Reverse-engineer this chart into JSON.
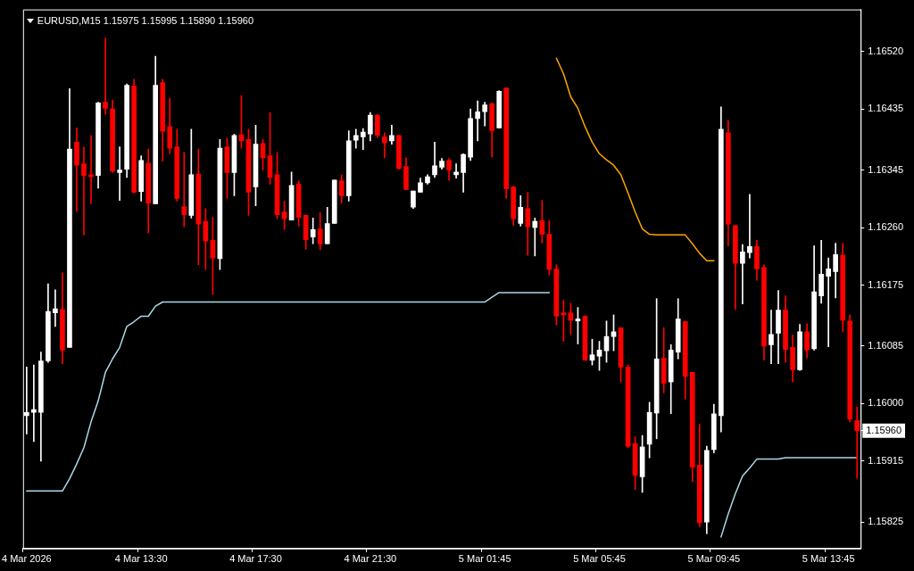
{
  "chart_data": {
    "type": "candlestick",
    "title": "EURUSD,M15 1.15975 1.15995 1.15890 1.15960",
    "categories": [
      "4 Mar 2026",
      null,
      null,
      null,
      null,
      null,
      null,
      null,
      null,
      null,
      null,
      null,
      null,
      null,
      null,
      null,
      "4 Mar 13:30",
      null,
      null,
      null,
      null,
      null,
      null,
      null,
      null,
      null,
      null,
      null,
      null,
      null,
      null,
      null,
      "4 Mar 17:30",
      null,
      null,
      null,
      null,
      null,
      null,
      null,
      null,
      null,
      null,
      null,
      null,
      null,
      null,
      null,
      "4 Mar 21:30",
      null,
      null,
      null,
      null,
      null,
      null,
      null,
      null,
      null,
      null,
      null,
      null,
      null,
      null,
      null,
      "5 Mar 01:45",
      null,
      null,
      null,
      null,
      null,
      null,
      null,
      null,
      null,
      null,
      null,
      null,
      null,
      null,
      null,
      "5 Mar 05:45",
      null,
      null,
      null,
      null,
      null,
      null,
      null,
      null,
      null,
      null,
      null,
      null,
      null,
      null,
      null,
      "5 Mar 09:45",
      null,
      null,
      null,
      null,
      null,
      null,
      null,
      null,
      null,
      null,
      null,
      null,
      null,
      null,
      null,
      "5 Mar 13:45",
      null,
      null,
      null,
      null
    ],
    "ohlc": [
      [
        1.15982,
        1.16054,
        1.15955,
        1.15987
      ],
      [
        1.15987,
        1.16057,
        1.15944,
        1.15991
      ],
      [
        1.15987,
        1.16076,
        1.15915,
        1.16063
      ],
      [
        1.16063,
        1.16177,
        1.16061,
        1.16136
      ],
      [
        1.16134,
        1.16168,
        1.16114,
        1.1614
      ],
      [
        1.16139,
        1.16193,
        1.16059,
        1.16079
      ],
      [
        1.16083,
        1.16465,
        1.16083,
        1.16376
      ],
      [
        1.16386,
        1.16407,
        1.16284,
        1.16352
      ],
      [
        1.16354,
        1.16379,
        1.16249,
        1.16337
      ],
      [
        1.16338,
        1.16396,
        1.16295,
        1.16335
      ],
      [
        1.16337,
        1.16445,
        1.16318,
        1.16444
      ],
      [
        1.16445,
        1.1654,
        1.16427,
        1.16436
      ],
      [
        1.16435,
        1.16448,
        1.16341,
        1.16343
      ],
      [
        1.16341,
        1.16379,
        1.163,
        1.16345
      ],
      [
        1.16346,
        1.16472,
        1.16334,
        1.1647
      ],
      [
        1.16469,
        1.16479,
        1.16311,
        1.16312
      ],
      [
        1.16313,
        1.16366,
        1.16299,
        1.16359
      ],
      [
        1.16355,
        1.16376,
        1.16252,
        1.16296
      ],
      [
        1.16295,
        1.16513,
        1.16295,
        1.1647
      ],
      [
        1.16474,
        1.16479,
        1.16358,
        1.16402
      ],
      [
        1.16409,
        1.16451,
        1.16369,
        1.16377
      ],
      [
        1.16379,
        1.16405,
        1.16299,
        1.16303
      ],
      [
        1.16291,
        1.16371,
        1.16261,
        1.16279
      ],
      [
        1.16278,
        1.16405,
        1.16274,
        1.16338
      ],
      [
        1.16339,
        1.16376,
        1.16205,
        1.16265
      ],
      [
        1.16269,
        1.16288,
        1.16198,
        1.1624
      ],
      [
        1.16241,
        1.16275,
        1.16161,
        1.16215
      ],
      [
        1.16214,
        1.1639,
        1.16198,
        1.16377
      ],
      [
        1.16379,
        1.16392,
        1.16303,
        1.16341
      ],
      [
        1.16341,
        1.16398,
        1.16307,
        1.16396
      ],
      [
        1.16397,
        1.16455,
        1.16377,
        1.16388
      ],
      [
        1.1639,
        1.16405,
        1.16278,
        1.16312
      ],
      [
        1.1632,
        1.16411,
        1.16292,
        1.16383
      ],
      [
        1.16384,
        1.1639,
        1.16345,
        1.16363
      ],
      [
        1.16366,
        1.1643,
        1.16324,
        1.16334
      ],
      [
        1.16338,
        1.16371,
        1.16273,
        1.16279
      ],
      [
        1.16283,
        1.16299,
        1.16257,
        1.16273
      ],
      [
        1.16271,
        1.16342,
        1.16271,
        1.16322
      ],
      [
        1.16324,
        1.16329,
        1.16262,
        1.16275
      ],
      [
        1.16278,
        1.16278,
        1.16228,
        1.16242
      ],
      [
        1.16246,
        1.16274,
        1.16236,
        1.16257
      ],
      [
        1.16258,
        1.16282,
        1.16227,
        1.16236
      ],
      [
        1.16236,
        1.1629,
        1.16236,
        1.16266
      ],
      [
        1.16266,
        1.1633,
        1.16266,
        1.1633
      ],
      [
        1.16329,
        1.16338,
        1.16296,
        1.16307
      ],
      [
        1.16307,
        1.16403,
        1.16299,
        1.16388
      ],
      [
        1.16389,
        1.16405,
        1.16377,
        1.16396
      ],
      [
        1.16394,
        1.16406,
        1.16375,
        1.16401
      ],
      [
        1.16398,
        1.1643,
        1.16388,
        1.16426
      ],
      [
        1.16426,
        1.16427,
        1.16393,
        1.16396
      ],
      [
        1.16394,
        1.164,
        1.16363,
        1.16385
      ],
      [
        1.16388,
        1.16411,
        1.16383,
        1.16396
      ],
      [
        1.16396,
        1.16396,
        1.16346,
        1.16347
      ],
      [
        1.1635,
        1.16363,
        1.16316,
        1.16316
      ],
      [
        1.1629,
        1.16314,
        1.16288,
        1.16314
      ],
      [
        1.16312,
        1.16333,
        1.16312,
        1.16326
      ],
      [
        1.16326,
        1.16338,
        1.16324,
        1.16335
      ],
      [
        1.16338,
        1.16386,
        1.16334,
        1.16351
      ],
      [
        1.16349,
        1.16362,
        1.16346,
        1.16358
      ],
      [
        1.16359,
        1.16362,
        1.1633,
        1.16345
      ],
      [
        1.16338,
        1.16354,
        1.16333,
        1.16342
      ],
      [
        1.16341,
        1.16369,
        1.16312,
        1.16368
      ],
      [
        1.16364,
        1.16435,
        1.16359,
        1.16421
      ],
      [
        1.16421,
        1.16447,
        1.16388,
        1.16431
      ],
      [
        1.16431,
        1.16445,
        1.1641,
        1.16441
      ],
      [
        1.16443,
        1.16444,
        1.16364,
        1.16403
      ],
      [
        1.16407,
        1.16462,
        1.16407,
        1.16461
      ],
      [
        1.16466,
        1.16466,
        1.16303,
        1.16317
      ],
      [
        1.1632,
        1.16321,
        1.16263,
        1.16273
      ],
      [
        1.16266,
        1.16307,
        1.16262,
        1.1629
      ],
      [
        1.16288,
        1.16312,
        1.16219,
        1.16261
      ],
      [
        1.1626,
        1.16274,
        1.16218,
        1.16269
      ],
      [
        1.1627,
        1.163,
        1.16237,
        1.1625
      ],
      [
        1.1625,
        1.1627,
        1.1619,
        1.16198
      ],
      [
        1.16199,
        1.16205,
        1.16116,
        1.16129
      ],
      [
        1.16134,
        1.16153,
        1.16092,
        1.16131
      ],
      [
        1.16134,
        1.16148,
        1.16102,
        1.16123
      ],
      [
        1.16122,
        1.16142,
        1.16088,
        1.16125
      ],
      [
        1.16129,
        1.1613,
        1.16064,
        1.16064
      ],
      [
        1.16064,
        1.16095,
        1.16057,
        1.16072
      ],
      [
        1.1607,
        1.16092,
        1.16049,
        1.16079
      ],
      [
        1.16078,
        1.16122,
        1.16061,
        1.16099
      ],
      [
        1.16099,
        1.16131,
        1.16078,
        1.16106
      ],
      [
        1.16112,
        1.16112,
        1.16032,
        1.16054
      ],
      [
        1.16054,
        1.16057,
        1.15935,
        1.15937
      ],
      [
        1.15941,
        1.15951,
        1.15873,
        1.15894
      ],
      [
        1.15892,
        1.15953,
        1.15869,
        1.15936
      ],
      [
        1.1594,
        1.16002,
        1.1592,
        1.15987
      ],
      [
        1.15986,
        1.16155,
        1.15948,
        1.16066
      ],
      [
        1.16067,
        1.16112,
        1.16016,
        1.1603
      ],
      [
        1.16032,
        1.16087,
        1.15985,
        1.16079
      ],
      [
        1.16076,
        1.16155,
        1.16066,
        1.16125
      ],
      [
        1.16121,
        1.16122,
        1.16007,
        1.1604
      ],
      [
        1.16046,
        1.16046,
        1.15885,
        1.15906
      ],
      [
        1.15909,
        1.1597,
        1.15818,
        1.15824
      ],
      [
        1.15825,
        1.15937,
        1.15808,
        1.15931
      ],
      [
        1.15932,
        1.15999,
        1.15927,
        1.15985
      ],
      [
        1.15982,
        1.16438,
        1.15958,
        1.16405
      ],
      [
        1.164,
        1.16418,
        1.16233,
        1.16265
      ],
      [
        1.16263,
        1.16263,
        1.16139,
        1.16207
      ],
      [
        1.16207,
        1.16235,
        1.16147,
        1.16224
      ],
      [
        1.16223,
        1.16309,
        1.16215,
        1.16232
      ],
      [
        1.16232,
        1.16241,
        1.16182,
        1.16199
      ],
      [
        1.16201,
        1.16205,
        1.16064,
        1.16085
      ],
      [
        1.16087,
        1.16138,
        1.16059,
        1.16102
      ],
      [
        1.16104,
        1.16167,
        1.16059,
        1.16138
      ],
      [
        1.16138,
        1.16159,
        1.16061,
        1.1608
      ],
      [
        1.16083,
        1.16101,
        1.16032,
        1.1605
      ],
      [
        1.1605,
        1.16117,
        1.16049,
        1.16106
      ],
      [
        1.16106,
        1.16118,
        1.16067,
        1.16079
      ],
      [
        1.16081,
        1.16233,
        1.16079,
        1.16165
      ],
      [
        1.16159,
        1.16241,
        1.16148,
        1.16191
      ],
      [
        1.16188,
        1.16215,
        1.16084,
        1.16199
      ],
      [
        1.16195,
        1.16237,
        1.16156,
        1.1622
      ],
      [
        1.16219,
        1.16237,
        1.16106,
        1.16123
      ],
      [
        1.16122,
        1.16131,
        1.15973,
        1.15977
      ],
      [
        1.15975,
        1.15995,
        1.1589,
        1.1596
      ]
    ],
    "colors": [
      "#ffffff",
      "#ffffff",
      "#ffffff",
      "#ffffff",
      "#ffffff",
      "#ff0000",
      "#ffffff",
      "#ff0000",
      "#ff0000",
      "#ff0000",
      "#ffffff",
      "#ff0000",
      "#ff0000",
      "#ffffff",
      "#ffffff",
      "#ff0000",
      "#ffffff",
      "#ff0000",
      "#ffffff",
      "#ff0000",
      "#ff0000",
      "#ff0000",
      "#ff0000",
      "#ffffff",
      "#ff0000",
      "#ff0000",
      "#ff0000",
      "#ffffff",
      "#ff0000",
      "#ffffff",
      "#ff0000",
      "#ff0000",
      "#ffffff",
      "#ff0000",
      "#ff0000",
      "#ff0000",
      "#ff0000",
      "#ffffff",
      "#ff0000",
      "#ff0000",
      "#ffffff",
      "#ff0000",
      "#ffffff",
      "#ffffff",
      "#ff0000",
      "#ffffff",
      "#ffffff",
      "#ffffff",
      "#ffffff",
      "#ff0000",
      "#ff0000",
      "#ffffff",
      "#ff0000",
      "#ff0000",
      "#ffffff",
      "#ffffff",
      "#ffffff",
      "#ffffff",
      "#ffffff",
      "#ff0000",
      "#ffffff",
      "#ffffff",
      "#ffffff",
      "#ffffff",
      "#ffffff",
      "#ff0000",
      "#ffffff",
      "#ff0000",
      "#ff0000",
      "#ffffff",
      "#ff0000",
      "#ffffff",
      "#ff0000",
      "#ff0000",
      "#ff0000",
      "#ff0000",
      "#ff0000",
      "#ffffff",
      "#ff0000",
      "#ffffff",
      "#ffffff",
      "#ffffff",
      "#ffffff",
      "#ff0000",
      "#ff0000",
      "#ff0000",
      "#ffffff",
      "#ffffff",
      "#ffffff",
      "#ff0000",
      "#ffffff",
      "#ffffff",
      "#ff0000",
      "#ff0000",
      "#ff0000",
      "#ffffff",
      "#ffffff",
      "#ffffff",
      "#ff0000",
      "#ff0000",
      "#ffffff",
      "#ffffff",
      "#ff0000",
      "#ff0000",
      "#ffffff",
      "#ffffff",
      "#ff0000",
      "#ff0000",
      "#ffffff",
      "#ff0000",
      "#ffffff",
      "#ffffff",
      "#ffffff",
      "#ffffff",
      "#ff0000",
      "#ff0000",
      "#ff0000"
    ],
    "series": [
      {
        "type": "line",
        "color": "#add8e6",
        "values": [
          1.15871,
          1.15871,
          1.15871,
          1.15871,
          1.15871,
          1.15871,
          1.15889,
          1.15911,
          1.15935,
          1.15973,
          1.16004,
          1.16046,
          1.16066,
          1.16083,
          1.16114,
          1.16121,
          1.16129,
          1.16129,
          1.16144,
          1.1615,
          1.1615,
          1.1615,
          1.1615,
          1.1615,
          1.1615,
          1.1615,
          1.1615,
          1.1615,
          1.1615,
          1.1615,
          1.1615,
          1.1615,
          1.1615,
          1.1615,
          1.1615,
          1.1615,
          1.1615,
          1.1615,
          1.1615,
          1.1615,
          1.1615,
          1.1615,
          1.1615,
          1.1615,
          1.1615,
          1.1615,
          1.1615,
          1.1615,
          1.1615,
          1.1615,
          1.1615,
          1.1615,
          1.1615,
          1.1615,
          1.1615,
          1.1615,
          1.1615,
          1.1615,
          1.1615,
          1.1615,
          1.1615,
          1.1615,
          1.1615,
          1.1615,
          1.1615,
          1.16157,
          1.16164,
          1.16164,
          1.16164,
          1.16164,
          1.16164,
          1.16164,
          1.16164,
          1.16164,
          null,
          null,
          null,
          null,
          null,
          null,
          null,
          null,
          null,
          null,
          null,
          null,
          null,
          null,
          null,
          null,
          null,
          null,
          null,
          null,
          null,
          null,
          null,
          1.15803,
          1.15837,
          1.15867,
          1.15893,
          1.15905,
          1.15918,
          1.15918,
          1.15918,
          1.15918,
          1.1592,
          1.1592,
          1.1592,
          1.1592,
          1.1592,
          1.1592,
          1.1592,
          1.1592,
          1.1592,
          1.1592,
          1.1592
        ]
      },
      {
        "type": "line",
        "color": "#ffa500",
        "values": [
          null,
          null,
          null,
          null,
          null,
          null,
          null,
          null,
          null,
          null,
          null,
          null,
          null,
          null,
          null,
          null,
          null,
          null,
          null,
          null,
          null,
          null,
          null,
          null,
          null,
          null,
          null,
          null,
          null,
          null,
          null,
          null,
          null,
          null,
          null,
          null,
          null,
          null,
          null,
          null,
          null,
          null,
          null,
          null,
          null,
          null,
          null,
          null,
          null,
          null,
          null,
          null,
          null,
          null,
          null,
          null,
          null,
          null,
          null,
          null,
          null,
          null,
          null,
          null,
          null,
          null,
          null,
          null,
          null,
          null,
          null,
          null,
          null,
          null,
          1.1651,
          1.16487,
          1.16453,
          1.16436,
          1.16409,
          1.16386,
          1.16369,
          1.1636,
          1.16352,
          1.16338,
          1.16311,
          1.16283,
          1.16258,
          1.1625,
          1.16249,
          1.16249,
          1.16249,
          1.16249,
          1.16249,
          1.16236,
          1.16222,
          1.16211,
          1.16211,
          null,
          null,
          null,
          null,
          null,
          null,
          null,
          null,
          null,
          null,
          null,
          null,
          null,
          null,
          null,
          null,
          null,
          null,
          null,
          null
        ]
      }
    ],
    "ylim": [
      1.15786,
      1.16582
    ],
    "yticks": [
      {
        "value": 1.15825,
        "label": "1.15825"
      },
      {
        "value": 1.15915,
        "label": "1.15915"
      },
      {
        "value": 1.1596,
        "label": "1.15960"
      },
      {
        "value": 1.16,
        "label": "1.16000"
      },
      {
        "value": 1.16085,
        "label": "1.16085"
      },
      {
        "value": 1.16175,
        "label": "1.16175"
      },
      {
        "value": 1.1626,
        "label": "1.16260"
      },
      {
        "value": 1.16345,
        "label": "1.16345"
      },
      {
        "value": 1.16435,
        "label": "1.16435"
      },
      {
        "value": 1.1652,
        "label": "1.16520"
      }
    ],
    "grid": false,
    "legend": false
  }
}
